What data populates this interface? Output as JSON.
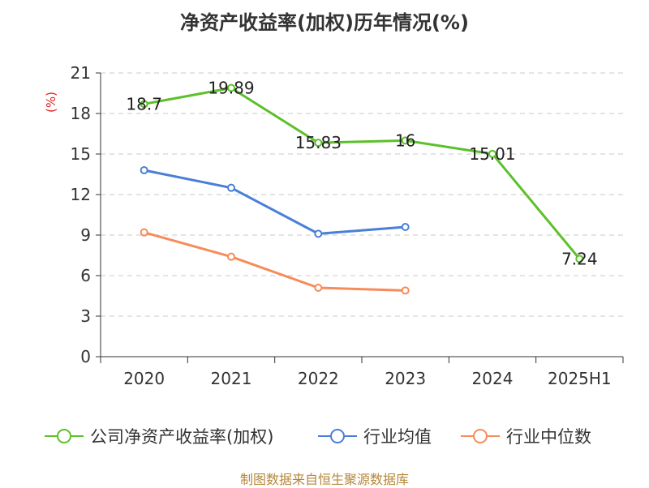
{
  "chart_data": {
    "type": "line",
    "title": "净资产收益率(加权)历年情况(%)",
    "ylabel": "(%)",
    "xlabel": "",
    "categories": [
      "2020",
      "2021",
      "2022",
      "2023",
      "2024",
      "2025H1"
    ],
    "ylim": [
      0,
      21
    ],
    "yticks": [
      0,
      3,
      6,
      9,
      12,
      15,
      18,
      21
    ],
    "grid": "horizontal dashed",
    "legend_position": "bottom",
    "series": [
      {
        "name": "公司净资产收益率(加权)",
        "color": "#5cc02b",
        "values": [
          18.7,
          19.89,
          15.83,
          16,
          15.01,
          7.24
        ],
        "labels": [
          "18.7",
          "19.89",
          "15.83",
          "16",
          "15.01",
          "7.24"
        ]
      },
      {
        "name": "行业均值",
        "color": "#4a7fd9",
        "values": [
          13.8,
          12.5,
          9.1,
          9.6,
          null,
          null
        ]
      },
      {
        "name": "行业中位数",
        "color": "#f58c5a",
        "values": [
          9.2,
          7.4,
          5.1,
          4.9,
          null,
          null
        ]
      }
    ]
  },
  "footer": "制图数据来自恒生聚源数据库"
}
